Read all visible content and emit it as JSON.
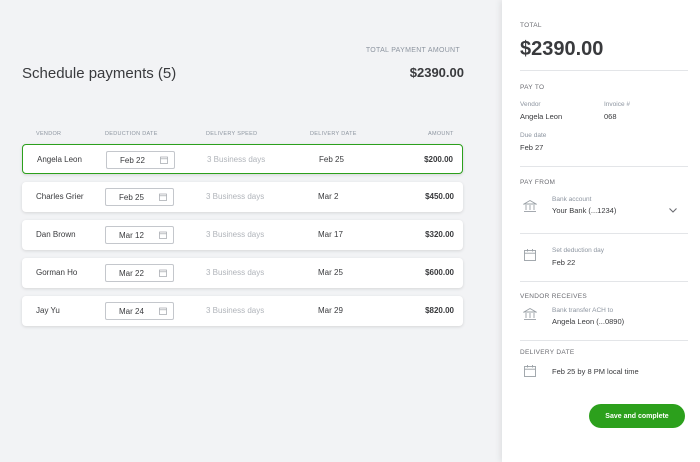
{
  "main": {
    "title": "Schedule payments (5)",
    "total_caption": "TOTAL PAYMENT AMOUNT",
    "total_amount": "$2390.00",
    "columns": {
      "vendor": "VENDOR",
      "deduction_date": "DEDUCTION DATE",
      "delivery_speed": "DELIVERY SPEED",
      "delivery_date": "DELIVERY DATE",
      "amount": "AMOUNT"
    },
    "rows": [
      {
        "vendor": "Angela Leon",
        "deduction": "Feb 22",
        "speed": "3 Business days",
        "delivery": "Feb 25",
        "amount": "$200.00",
        "selected": true
      },
      {
        "vendor": "Charles Grier",
        "deduction": "Feb 25",
        "speed": "3 Business days",
        "delivery": "Mar 2",
        "amount": "$450.00",
        "selected": false
      },
      {
        "vendor": "Dan Brown",
        "deduction": "Mar 12",
        "speed": "3 Business days",
        "delivery": "Mar 17",
        "amount": "$320.00",
        "selected": false
      },
      {
        "vendor": "Gorman Ho",
        "deduction": "Mar 22",
        "speed": "3 Business days",
        "delivery": "Mar 25",
        "amount": "$600.00",
        "selected": false
      },
      {
        "vendor": "Jay Yu",
        "deduction": "Mar 24",
        "speed": "3 Business days",
        "delivery": "Mar 29",
        "amount": "$820.00",
        "selected": false
      }
    ]
  },
  "panel": {
    "total_label": "TOTAL",
    "total_amount": "$2390.00",
    "pay_to_label": "PAY TO",
    "vendor_label": "Vendor",
    "vendor_value": "Angela Leon",
    "invoice_label": "Invoice #",
    "invoice_value": "068",
    "due_label": "Due date",
    "due_value": "Feb 27",
    "pay_from_label": "PAY FROM",
    "bank_label": "Bank account",
    "bank_value": "Your Bank (...1234)",
    "deduction_label": "Set deduction day",
    "deduction_value": "Feb 22",
    "vendor_receives_label": "VENDOR RECEIVES",
    "transfer_label": "Bank transfer ACH to",
    "transfer_value": "Angela Leon (...0890)",
    "delivery_label": "DELIVERY DATE",
    "delivery_value": "Feb 25 by 8 PM local time",
    "save_button": "Save and complete"
  },
  "icons": {
    "calendar": "calendar-icon",
    "bank": "bank-icon",
    "chevron": "chevron-down-icon"
  },
  "colors": {
    "accent": "#2ca01c",
    "background": "#f2f3f5",
    "panel": "#ffffff",
    "muted_text": "#8d95a0"
  }
}
